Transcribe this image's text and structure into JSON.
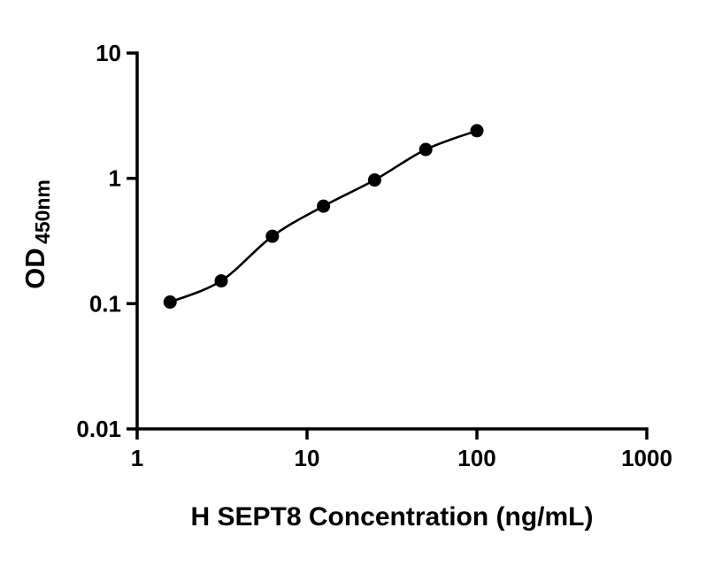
{
  "chart_data": {
    "type": "scatter",
    "title": "",
    "xlabel": "H SEPT8 Concentration (ng/mL)",
    "ylabel_main": "OD",
    "ylabel_sub": "450nm",
    "x_scale": "log",
    "y_scale": "log",
    "xlim": [
      1,
      1000
    ],
    "ylim": [
      0.01,
      10
    ],
    "grid": "off",
    "legend": "none",
    "x": [
      1.563,
      3.125,
      6.25,
      12.5,
      25,
      50,
      100
    ],
    "y": [
      0.103,
      0.152,
      0.345,
      0.6,
      0.97,
      1.7,
      2.4
    ],
    "x_ticks": {
      "values": [
        1,
        10,
        100,
        1000
      ],
      "labels": [
        "1",
        "10",
        "100",
        "1000"
      ]
    },
    "y_ticks": {
      "values": [
        0.01,
        0.1,
        1,
        10
      ],
      "labels": [
        "0.01",
        "0.1",
        "1",
        "10"
      ]
    },
    "marker_color": "#000000",
    "line_color": "#000000",
    "axis_color": "#000000",
    "background_color": "#ffffff"
  }
}
